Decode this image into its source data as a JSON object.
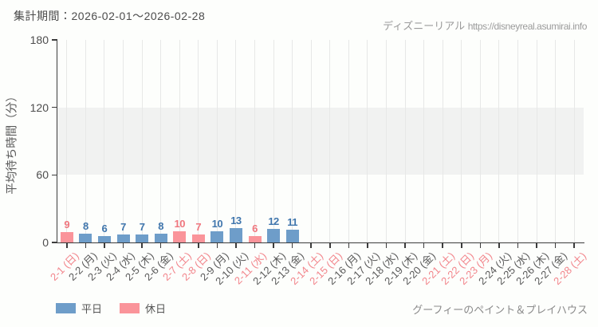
{
  "header": {
    "period_label": "集計期間：2026-02-01～2026-02-28"
  },
  "credit": {
    "site_name": "ディズニーリアル",
    "site_url": "https://disneyreal.asumirai.info"
  },
  "attraction_name": "グーフィーのペイント＆プレイハウス",
  "chart_data": {
    "type": "bar",
    "title": "",
    "xlabel": "",
    "ylabel": "平均待ち時間（分）",
    "ylim": [
      0,
      180
    ],
    "yticks": [
      0,
      60,
      120,
      180
    ],
    "grid": "vertical-per-category",
    "band": {
      "from": 60,
      "to": 120,
      "color": "#f1f2f1"
    },
    "categories": [
      "2-1 (日)",
      "2-2 (月)",
      "2-3 (火)",
      "2-4 (水)",
      "2-5 (木)",
      "2-6 (金)",
      "2-7 (土)",
      "2-8 (日)",
      "2-9 (月)",
      "2-10 (火)",
      "2-11 (水)",
      "2-12 (木)",
      "2-13 (金)",
      "2-14 (土)",
      "2-15 (日)",
      "2-16 (月)",
      "2-17 (火)",
      "2-18 (水)",
      "2-19 (木)",
      "2-20 (金)",
      "2-21 (土)",
      "2-22 (日)",
      "2-23 (月)",
      "2-24 (火)",
      "2-25 (水)",
      "2-26 (木)",
      "2-27 (金)",
      "2-28 (土)"
    ],
    "values": [
      9,
      8,
      6,
      7,
      7,
      8,
      10,
      7,
      10,
      13,
      6,
      12,
      11,
      null,
      null,
      null,
      null,
      null,
      null,
      null,
      null,
      null,
      null,
      null,
      null,
      null,
      null,
      null
    ],
    "day_types": [
      "holiday",
      "weekday",
      "weekday",
      "weekday",
      "weekday",
      "weekday",
      "holiday",
      "holiday",
      "weekday",
      "weekday",
      "holiday",
      "weekday",
      "weekday",
      "holiday",
      "holiday",
      "weekday",
      "weekday",
      "weekday",
      "weekday",
      "weekday",
      "holiday",
      "holiday",
      "holiday",
      "weekday",
      "weekday",
      "weekday",
      "weekday",
      "holiday"
    ],
    "colors": {
      "weekday_bar": "#6e9dc9",
      "holiday_bar": "#fa949a",
      "weekday_value_label": "#4076ad",
      "holiday_value_label": "#f0767e",
      "weekday_tick_label": "#595959",
      "holiday_tick_label": "#f2858b"
    },
    "legend": [
      {
        "label": "平日",
        "type": "weekday",
        "color": "#6e9dc9"
      },
      {
        "label": "休日",
        "type": "holiday",
        "color": "#fa949a"
      }
    ],
    "legend_position": "bottom-left"
  }
}
